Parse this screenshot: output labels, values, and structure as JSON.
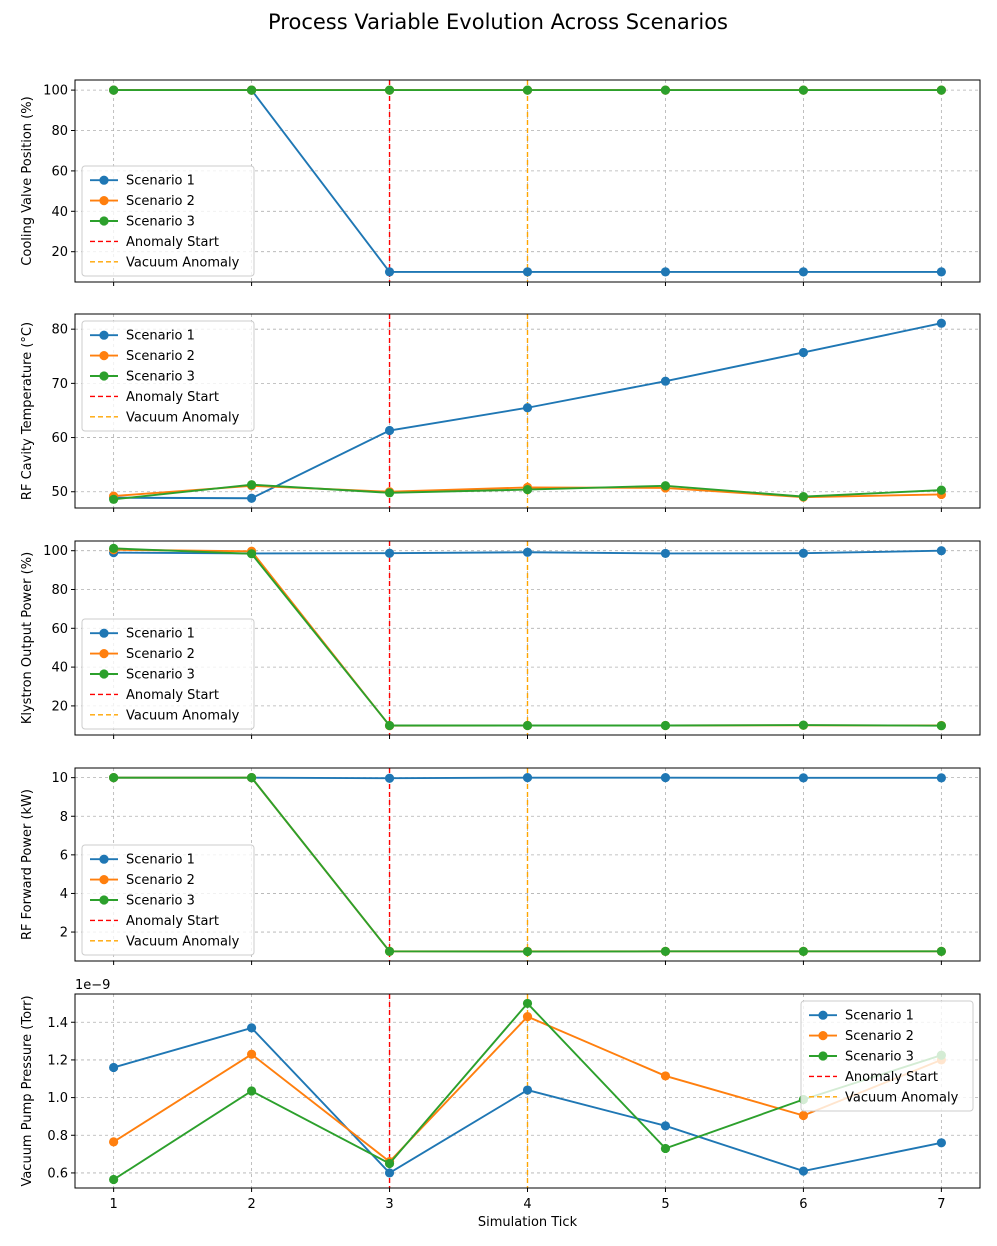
{
  "title": "Process Variable Evolution Across Scenarios",
  "colors": {
    "scenario_1": "#1f77b4",
    "scenario_2": "#ff7f0e",
    "scenario_3": "#2ca02c",
    "anomaly_start": "#ff0000",
    "vacuum_anomaly": "#ffa500",
    "grid": "#b0b0b0"
  },
  "chart_data": [
    {
      "type": "line",
      "ylabel": "Cooling Valve Position (%)",
      "xlabel": "",
      "x": [
        1,
        2,
        3,
        4,
        5,
        6,
        7
      ],
      "ylim": [
        5,
        105
      ],
      "yticks": [
        20,
        40,
        60,
        80,
        100
      ],
      "grid": true,
      "legend_position": "lower-left",
      "series": [
        {
          "name": "Scenario 1",
          "values": [
            100,
            100,
            10,
            10,
            10,
            10,
            10
          ]
        },
        {
          "name": "Scenario 2",
          "values": [
            100,
            100,
            100,
            100,
            100,
            100,
            100
          ]
        },
        {
          "name": "Scenario 3",
          "values": [
            100,
            100,
            100,
            100,
            100,
            100,
            100
          ]
        }
      ],
      "vlines": [
        {
          "name": "Anomaly Start",
          "x": 3
        },
        {
          "name": "Vacuum Anomaly",
          "x": 4
        }
      ]
    },
    {
      "type": "line",
      "ylabel": "RF Cavity Temperature (°C)",
      "xlabel": "",
      "x": [
        1,
        2,
        3,
        4,
        5,
        6,
        7
      ],
      "ylim": [
        47.0,
        82.8
      ],
      "yticks": [
        50,
        60,
        70,
        80
      ],
      "grid": true,
      "legend_position": "upper-left",
      "series": [
        {
          "name": "Scenario 1",
          "values": [
            48.9,
            48.8,
            61.3,
            65.5,
            70.4,
            75.7,
            81.1
          ]
        },
        {
          "name": "Scenario 2",
          "values": [
            49.2,
            51.1,
            50.0,
            50.8,
            50.7,
            49.0,
            49.5
          ]
        },
        {
          "name": "Scenario 3",
          "values": [
            48.6,
            51.3,
            49.8,
            50.4,
            51.1,
            49.1,
            50.3
          ]
        }
      ],
      "vlines": [
        {
          "name": "Anomaly Start",
          "x": 3
        },
        {
          "name": "Vacuum Anomaly",
          "x": 4
        }
      ]
    },
    {
      "type": "line",
      "ylabel": "Klystron Output Power (%)",
      "xlabel": "",
      "x": [
        1,
        2,
        3,
        4,
        5,
        6,
        7
      ],
      "ylim": [
        5,
        105
      ],
      "yticks": [
        20,
        40,
        60,
        80,
        100
      ],
      "grid": true,
      "legend_position": "lower-left",
      "series": [
        {
          "name": "Scenario 1",
          "values": [
            99.0,
            98.6,
            98.7,
            99.2,
            98.6,
            98.7,
            100.0
          ]
        },
        {
          "name": "Scenario 2",
          "values": [
            100.5,
            99.7,
            9.8,
            9.9,
            9.9,
            10.0,
            9.9
          ]
        },
        {
          "name": "Scenario 3",
          "values": [
            101.2,
            98.4,
            9.9,
            9.9,
            9.9,
            10.1,
            9.8
          ]
        }
      ],
      "vlines": [
        {
          "name": "Anomaly Start",
          "x": 3
        },
        {
          "name": "Vacuum Anomaly",
          "x": 4
        }
      ]
    },
    {
      "type": "line",
      "ylabel": "RF Forward Power (kW)",
      "xlabel": "",
      "x": [
        1,
        2,
        3,
        4,
        5,
        6,
        7
      ],
      "ylim": [
        0.5,
        10.5
      ],
      "yticks": [
        2,
        4,
        6,
        8,
        10
      ],
      "grid": true,
      "legend_position": "lower-left",
      "series": [
        {
          "name": "Scenario 1",
          "values": [
            10.0,
            10.0,
            9.97,
            10.0,
            10.0,
            9.99,
            9.99
          ]
        },
        {
          "name": "Scenario 2",
          "values": [
            10.0,
            10.0,
            1.0,
            1.0,
            1.0,
            1.0,
            1.0
          ]
        },
        {
          "name": "Scenario 3",
          "values": [
            10.0,
            10.0,
            1.0,
            0.99,
            1.0,
            1.0,
            1.0
          ]
        }
      ],
      "vlines": [
        {
          "name": "Anomaly Start",
          "x": 3
        },
        {
          "name": "Vacuum Anomaly",
          "x": 4
        }
      ]
    },
    {
      "type": "line",
      "ylabel": "Vacuum Pump Pressure (Torr)",
      "xlabel": "Simulation Tick",
      "offset_label": "1e−9",
      "x": [
        1,
        2,
        3,
        4,
        5,
        6,
        7
      ],
      "ylim": [
        5.2e-10,
        1.55e-09
      ],
      "yticks": [
        6e-10,
        8e-10,
        1e-09,
        1.2e-09,
        1.4e-09
      ],
      "ytick_labels": [
        "0.6",
        "0.8",
        "1.0",
        "1.2",
        "1.4"
      ],
      "grid": true,
      "legend_position": "upper-right",
      "series": [
        {
          "name": "Scenario 1",
          "values": [
            1.16e-09,
            1.37e-09,
            6e-10,
            1.04e-09,
            8.5e-10,
            6.1e-10,
            7.6e-10
          ]
        },
        {
          "name": "Scenario 2",
          "values": [
            7.65e-10,
            1.23e-09,
            6.6e-10,
            1.43e-09,
            1.115e-09,
            9.05e-10,
            1.2e-09
          ]
        },
        {
          "name": "Scenario 3",
          "values": [
            5.65e-10,
            1.035e-09,
            6.5e-10,
            1.5e-09,
            7.3e-10,
            9.9e-10,
            1.225e-09
          ]
        }
      ],
      "vlines": [
        {
          "name": "Anomaly Start",
          "x": 3
        },
        {
          "name": "Vacuum Anomaly",
          "x": 4
        }
      ]
    }
  ]
}
